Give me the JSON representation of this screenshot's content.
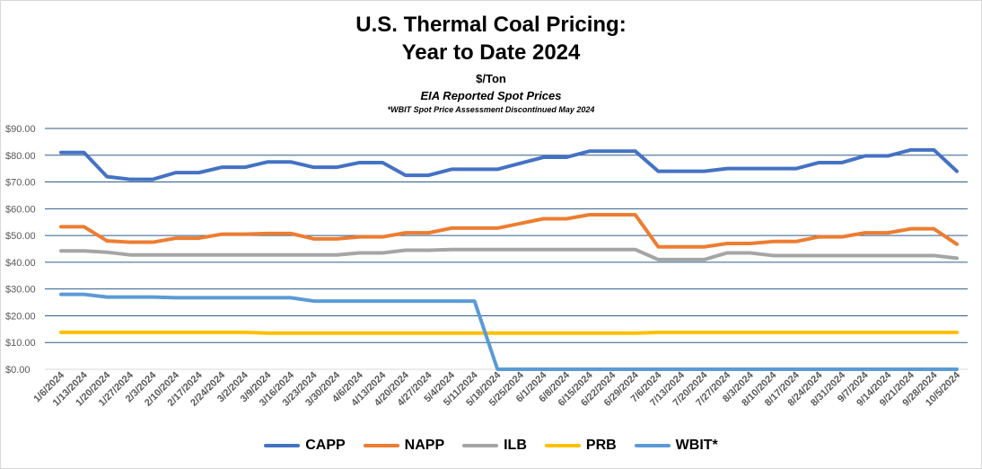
{
  "title_line1": "U.S. Thermal Coal Pricing:",
  "title_line2": "Year to Date 2024",
  "subtitle": "$/Ton",
  "source_note": "EIA Reported Spot Prices",
  "footnote": "*WBIT Spot Price Assessment Discontinued May 2024",
  "chart_data": {
    "type": "line",
    "ylim": [
      0,
      90
    ],
    "ytick_labels": [
      "$0.00",
      "$10.00",
      "$20.00",
      "$30.00",
      "$40.00",
      "$50.00",
      "$60.00",
      "$70.00",
      "$80.00",
      "$90.00"
    ],
    "grid": true,
    "legend_placement": "bottom",
    "categories": [
      "1/6/2024",
      "1/13/2024",
      "1/20/2024",
      "1/27/2024",
      "2/3/2024",
      "2/10/2024",
      "2/17/2024",
      "2/24/2024",
      "3/2/2024",
      "3/9/2024",
      "3/16/2024",
      "3/23/2024",
      "3/30/2024",
      "4/6/2024",
      "4/13/2024",
      "4/20/2024",
      "4/27/2024",
      "5/4/2024",
      "5/11/2024",
      "5/18/2024",
      "5/25/2024",
      "6/1/2024",
      "6/8/2024",
      "6/15/2024",
      "6/22/2024",
      "6/29/2024",
      "7/6/2024",
      "7/13/2024",
      "7/20/2024",
      "7/27/2024",
      "8/3/2024",
      "8/10/2024",
      "8/17/2024",
      "8/24/2024",
      "8/31/2024",
      "9/7/2024",
      "9/14/2024",
      "9/21/2024",
      "9/28/2024",
      "10/5/2024"
    ],
    "series": [
      {
        "name": "CAPP",
        "color": "#4472C4",
        "values": [
          81,
          81,
          72,
          71,
          71,
          73.5,
          73.5,
          75.5,
          75.5,
          77.5,
          77.5,
          75.5,
          75.5,
          77.25,
          77.25,
          72.5,
          72.5,
          74.75,
          74.75,
          74.75,
          77,
          79.25,
          79.25,
          81.5,
          81.5,
          81.5,
          74,
          74,
          74,
          75,
          75,
          75,
          75,
          77.25,
          77.25,
          79.75,
          79.75,
          82,
          82,
          74
        ]
      },
      {
        "name": "NAPP",
        "color": "#ED7D31",
        "values": [
          53.25,
          53.25,
          48,
          47.5,
          47.5,
          49,
          49,
          50.5,
          50.5,
          50.75,
          50.75,
          48.75,
          48.75,
          49.5,
          49.5,
          51,
          51,
          52.75,
          52.75,
          52.75,
          54.5,
          56.25,
          56.25,
          57.75,
          57.75,
          57.75,
          45.75,
          45.75,
          45.75,
          47,
          47,
          47.75,
          47.75,
          49.5,
          49.5,
          51,
          51,
          52.5,
          52.5,
          46.75
        ]
      },
      {
        "name": "ILB",
        "color": "#A5A5A5",
        "values": [
          44.25,
          44.25,
          43.75,
          42.75,
          42.75,
          42.75,
          42.75,
          42.75,
          42.75,
          42.75,
          42.75,
          42.75,
          42.75,
          43.5,
          43.5,
          44.5,
          44.5,
          44.75,
          44.75,
          44.75,
          44.75,
          44.75,
          44.75,
          44.75,
          44.75,
          44.75,
          41,
          41,
          41,
          43.5,
          43.5,
          42.5,
          42.5,
          42.5,
          42.5,
          42.5,
          42.5,
          42.5,
          42.5,
          41.5
        ]
      },
      {
        "name": "PRB",
        "color": "#FFC000",
        "values": [
          13.8,
          13.8,
          13.8,
          13.8,
          13.8,
          13.8,
          13.8,
          13.8,
          13.8,
          13.5,
          13.5,
          13.5,
          13.5,
          13.5,
          13.5,
          13.5,
          13.5,
          13.5,
          13.5,
          13.5,
          13.5,
          13.5,
          13.5,
          13.5,
          13.5,
          13.5,
          13.75,
          13.75,
          13.75,
          13.75,
          13.75,
          13.75,
          13.75,
          13.75,
          13.75,
          13.75,
          13.75,
          13.75,
          13.75,
          13.75
        ]
      },
      {
        "name": "WBIT*",
        "color": "#5B9BD5",
        "values": [
          28,
          28,
          27,
          27,
          27,
          26.75,
          26.75,
          26.75,
          26.75,
          26.75,
          26.75,
          25.5,
          25.5,
          25.5,
          25.5,
          25.5,
          25.5,
          25.5,
          25.5,
          0,
          0,
          0,
          0,
          0,
          0,
          0,
          0,
          0,
          0,
          0,
          0,
          0,
          0,
          0,
          0,
          0,
          0,
          0,
          0,
          0
        ]
      }
    ]
  }
}
